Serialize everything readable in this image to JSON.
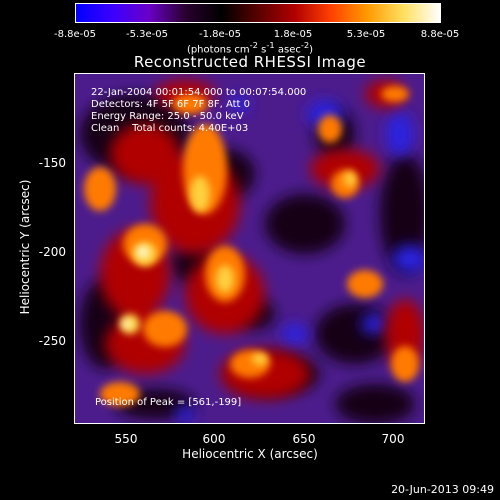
{
  "colorbar": {
    "ticks": [
      "-8.8e-05",
      "-5.3e-05",
      "-1.8e-05",
      "1.8e-05",
      "5.3e-05",
      "8.8e-05"
    ],
    "units_html": "(photons cm<sup>-2</sup> s<sup>-1</sup> asec<sup>-2</sup>)",
    "colors": [
      "#0000ff",
      "#3b00ff",
      "#6a00c8",
      "#2a0030",
      "#000000",
      "#5a0000",
      "#b00000",
      "#ff4000",
      "#ff9a00",
      "#ffe060",
      "#ffffff"
    ]
  },
  "title": "Reconstructed RHESSI Image",
  "info": {
    "time_range": "22-Jan-2004 00:01:54.000 to 00:07:54.000",
    "detectors": "Detectors: 4F 5F 6F 7F 8F, Att 0",
    "energy": "Energy Range: 25.0 - 50.0 keV",
    "clean": "Clean    Total counts: 4.40E+03",
    "peak": "Position of Peak = [561,-199]"
  },
  "axes": {
    "xlabel": "Heliocentric X (arcsec)",
    "ylabel": "Heliocentric Y (arcsec)",
    "xticks": [
      "550",
      "600",
      "650",
      "700"
    ],
    "yticks": [
      "-150",
      "-200",
      "-250"
    ]
  },
  "timestamp": "20-Jun-2013 09:49",
  "colors": {
    "background": "#000000",
    "neutral_purple": "#5a1f9a",
    "deep_purple": "#3a1678",
    "blue": "#2020ff",
    "red": "#c00000",
    "orange": "#ff8c00",
    "yellow": "#ffe060",
    "white": "#ffffff"
  }
}
